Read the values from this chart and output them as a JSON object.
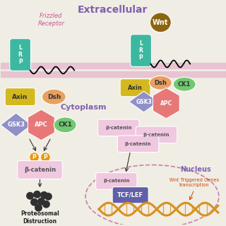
{
  "bg_color": "#f0ede4",
  "membrane_color": "#e8c0d0",
  "extracellular_label": "Extracellular",
  "extracellular_color": "#8060b0",
  "cytoplasm_label": "Cytoplasm",
  "cytoplasm_color": "#8060b0",
  "nucleus_label": "Nucleus",
  "nucleus_color": "#8060b0",
  "frizzled_label": "Frizzled\nReceptor",
  "frizzled_color": "#cc5599",
  "lrp_color": "#3db8a0",
  "wnt_color": "#8B6510",
  "axin_color": "#d4b820",
  "dsh_color": "#e8a060",
  "ck1_color": "#70c870",
  "gsk3_color": "#9090c8",
  "apc_color": "#e87878",
  "beta_catenin_color": "#f0c8e0",
  "beta_catenin_text": "#555555",
  "tcflef_color": "#6060a8",
  "dna_color": "#d89020",
  "proteasome_color": "#303030",
  "p_color": "#e89810",
  "arrow_color": "#303030",
  "nucleus_border": "#cc80aa",
  "wnt_text_color": "#cc4400"
}
